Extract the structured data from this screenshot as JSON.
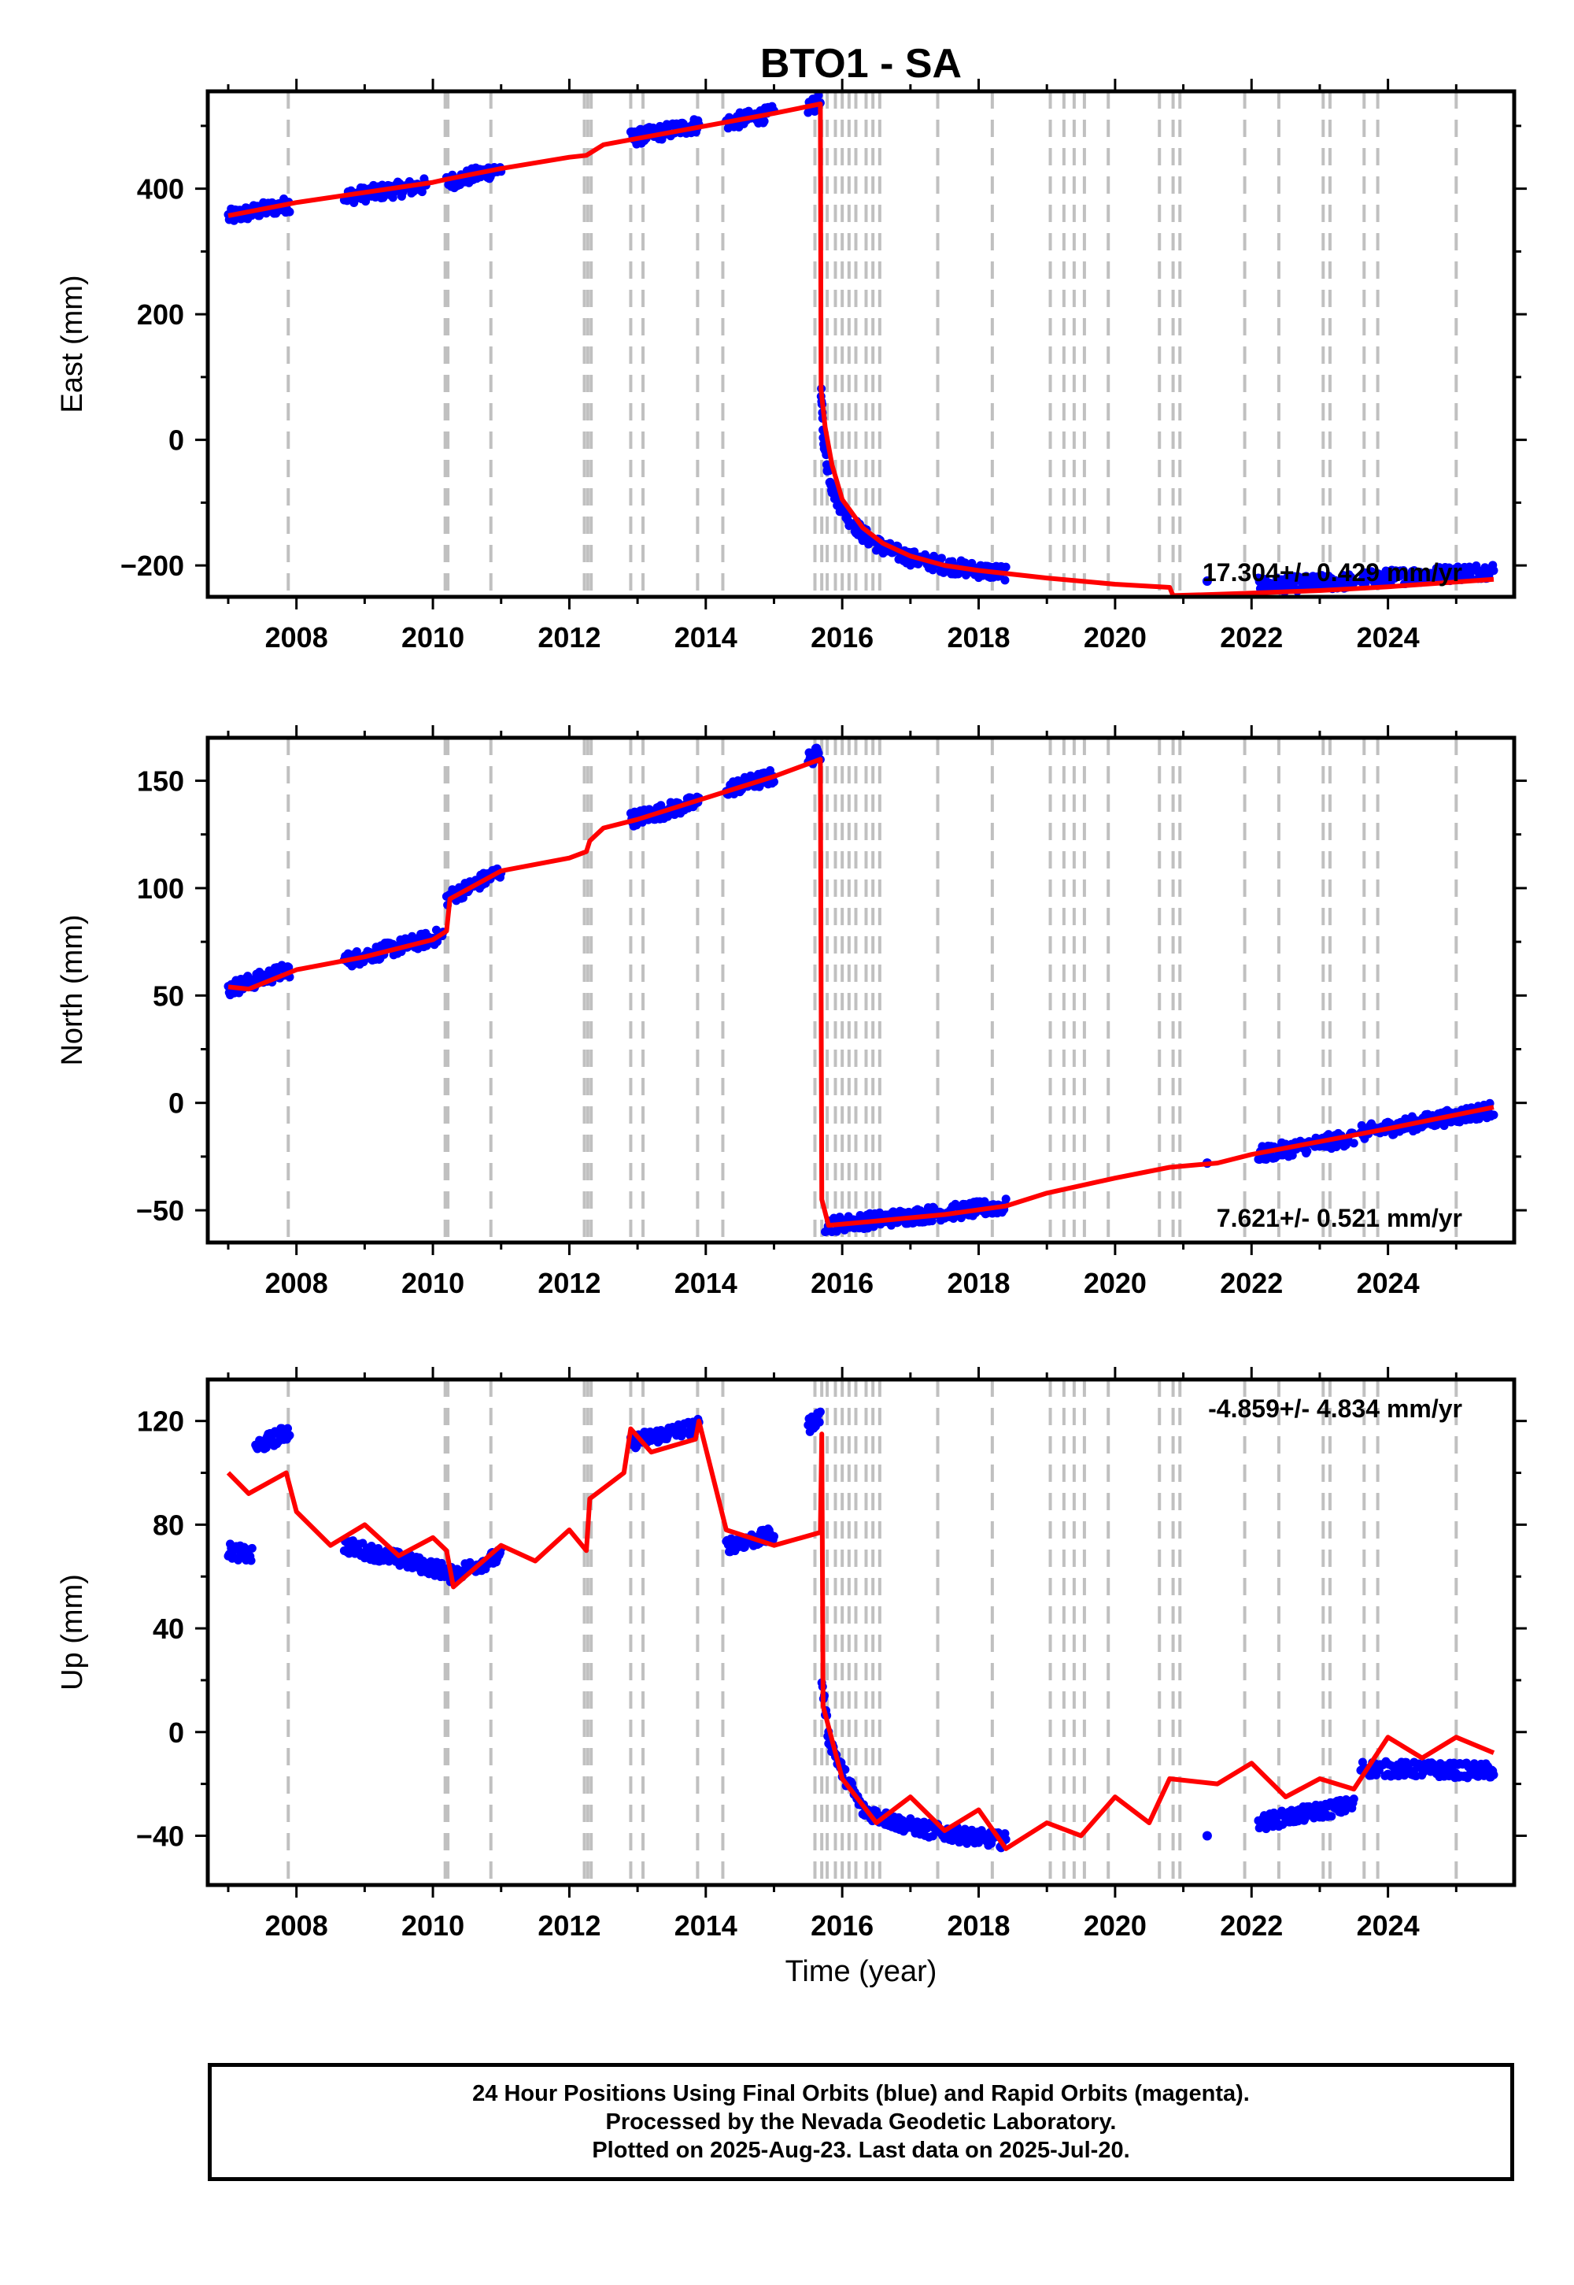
{
  "title": "BTO1 - SA",
  "footer": {
    "line1": "24 Hour Positions Using Final Orbits (blue) and Rapid Orbits (magenta).",
    "line2": "Processed by the Nevada Geodetic Laboratory.",
    "line3": "Plotted on 2025-Aug-23. Last data on 2025-Jul-20."
  },
  "colors": {
    "data": "#0000ff",
    "model": "#ff0000",
    "discontinuity": "#c0c0c0",
    "axes": "#000000"
  },
  "chart_data": [
    {
      "type": "scatter",
      "ylabel": "East (mm)",
      "xlabel": "",
      "xlim": [
        2006.7,
        2025.85
      ],
      "ylim": [
        -250,
        555
      ],
      "xticks": [
        2008,
        2010,
        2012,
        2014,
        2016,
        2018,
        2020,
        2022,
        2024
      ],
      "yticks": [
        -200,
        0,
        200,
        400
      ],
      "ytick_labels": [
        "−200",
        "0",
        "200",
        "400"
      ],
      "rate_label": "17.304+/- 0.429 mm/yr",
      "rate_position": "bottom-right",
      "discontinuities": [
        2007.88,
        2010.18,
        2010.22,
        2010.85,
        2012.22,
        2012.27,
        2012.32,
        2012.9,
        2013.08,
        2013.88,
        2014.25,
        2015.6,
        2015.7,
        2015.78,
        2015.9,
        2016.0,
        2016.1,
        2016.2,
        2016.35,
        2016.45,
        2016.55,
        2017.4,
        2018.2,
        2019.05,
        2019.25,
        2019.4,
        2019.55,
        2019.9,
        2020.65,
        2020.85,
        2020.95,
        2021.9,
        2022.4,
        2023.05,
        2023.15,
        2023.65,
        2023.85,
        2025.0
      ],
      "data_series": [
        {
          "x": [
            2007.0,
            2007.9
          ],
          "y": [
            355,
            375
          ]
        },
        {
          "x": [
            2008.7,
            2009.9
          ],
          "y": [
            387,
            405
          ]
        },
        {
          "x": [
            2010.2,
            2011.0
          ],
          "y": [
            410,
            432
          ]
        },
        {
          "x": [
            2012.9,
            2013.9
          ],
          "y": [
            480,
            502
          ]
        },
        {
          "x": [
            2014.3,
            2015.0
          ],
          "y": [
            505,
            520
          ]
        },
        {
          "x": [
            2015.5,
            2015.68
          ],
          "y": [
            530,
            538
          ]
        },
        {
          "x": [
            2015.69,
            2015.72,
            2015.78,
            2015.85,
            2015.95,
            2016.1,
            2016.3,
            2016.6,
            2017.0,
            2017.5,
            2018.0,
            2018.4
          ],
          "y": [
            80,
            10,
            -40,
            -75,
            -100,
            -125,
            -150,
            -172,
            -188,
            -200,
            -208,
            -212
          ]
        },
        {
          "x": [
            2021.35
          ],
          "y": [
            -225
          ]
        },
        {
          "x": [
            2022.1,
            2023.5
          ],
          "y": [
            -232,
            -225
          ]
        },
        {
          "x": [
            2023.6,
            2025.55
          ],
          "y": [
            -222,
            -208
          ]
        }
      ],
      "model": {
        "x": [
          2007.0,
          2008.0,
          2010.0,
          2010.2,
          2011.0,
          2012.0,
          2012.25,
          2012.5,
          2013.0,
          2014.0,
          2015.0,
          2015.68,
          2015.69,
          2015.75,
          2015.85,
          2016.0,
          2016.3,
          2016.6,
          2017.0,
          2017.5,
          2018.0,
          2019.0,
          2020.0,
          2020.8,
          2020.85,
          2021.5,
          2022.0,
          2023.0,
          2024.0,
          2025.55
        ],
        "y": [
          357,
          378,
          410,
          415,
          432,
          450,
          453,
          470,
          480,
          500,
          520,
          535,
          80,
          20,
          -40,
          -95,
          -140,
          -165,
          -185,
          -200,
          -208,
          -220,
          -230,
          -235,
          -248,
          -246,
          -244,
          -240,
          -234,
          -222
        ]
      }
    },
    {
      "type": "scatter",
      "ylabel": "North (mm)",
      "xlabel": "",
      "xlim": [
        2006.7,
        2025.85
      ],
      "ylim": [
        -65,
        170
      ],
      "xticks": [
        2008,
        2010,
        2012,
        2014,
        2016,
        2018,
        2020,
        2022,
        2024
      ],
      "yticks": [
        -50,
        0,
        50,
        100,
        150
      ],
      "ytick_labels": [
        "−50",
        "0",
        "50",
        "100",
        "150"
      ],
      "rate_label": "7.621+/- 0.521 mm/yr",
      "rate_position": "bottom-right",
      "discontinuities": [
        2007.88,
        2010.18,
        2010.22,
        2010.85,
        2012.22,
        2012.27,
        2012.32,
        2012.9,
        2013.08,
        2013.88,
        2014.25,
        2015.6,
        2015.7,
        2015.78,
        2015.9,
        2016.0,
        2016.1,
        2016.2,
        2016.35,
        2016.45,
        2016.55,
        2017.4,
        2018.2,
        2019.05,
        2019.25,
        2019.4,
        2019.55,
        2019.9,
        2020.65,
        2020.85,
        2020.95,
        2021.9,
        2022.4,
        2023.05,
        2023.15,
        2023.65,
        2023.85,
        2025.0
      ],
      "data_series": [
        {
          "x": [
            2007.0,
            2007.9
          ],
          "y": [
            53,
            62
          ]
        },
        {
          "x": [
            2008.7,
            2010.15
          ],
          "y": [
            66,
            78
          ]
        },
        {
          "x": [
            2010.2,
            2011.0
          ],
          "y": [
            95,
            108
          ]
        },
        {
          "x": [
            2012.9,
            2013.9
          ],
          "y": [
            132,
            140
          ]
        },
        {
          "x": [
            2014.3,
            2015.0
          ],
          "y": [
            146,
            152
          ]
        },
        {
          "x": [
            2015.5,
            2015.68
          ],
          "y": [
            160,
            163
          ]
        },
        {
          "x": [
            2015.75,
            2018.4
          ],
          "y": [
            -57,
            -48
          ]
        },
        {
          "x": [
            2021.35
          ],
          "y": [
            -28
          ]
        },
        {
          "x": [
            2022.1,
            2023.5
          ],
          "y": [
            -24,
            -16
          ]
        },
        {
          "x": [
            2023.6,
            2025.55
          ],
          "y": [
            -14,
            -3
          ]
        }
      ],
      "model": {
        "x": [
          2007.0,
          2007.3,
          2008.0,
          2009.0,
          2010.0,
          2010.2,
          2010.25,
          2011.0,
          2012.0,
          2012.25,
          2012.3,
          2012.5,
          2013.0,
          2014.0,
          2015.0,
          2015.68,
          2015.7,
          2015.8,
          2016.5,
          2017.5,
          2018.4,
          2019.0,
          2020.0,
          2020.8,
          2021.5,
          2022.0,
          2023.0,
          2024.0,
          2025.55
        ],
        "y": [
          54,
          53,
          62,
          68,
          76,
          80,
          95,
          108,
          114,
          117,
          122,
          128,
          132,
          142,
          152,
          160,
          -45,
          -57,
          -55,
          -52,
          -48,
          -42,
          -35,
          -30,
          -28,
          -24,
          -18,
          -12,
          -2
        ]
      }
    },
    {
      "type": "scatter",
      "ylabel": "Up (mm)",
      "xlabel": "Time (year)",
      "xlim": [
        2006.7,
        2025.85
      ],
      "ylim": [
        -59,
        136
      ],
      "xticks": [
        2008,
        2010,
        2012,
        2014,
        2016,
        2018,
        2020,
        2022,
        2024
      ],
      "yticks": [
        -40,
        0,
        40,
        80,
        120
      ],
      "ytick_labels": [
        "−40",
        "0",
        "40",
        "80",
        "120"
      ],
      "rate_label": "-4.859+/- 4.834 mm/yr",
      "rate_position": "top-right",
      "discontinuities": [
        2007.88,
        2010.18,
        2010.22,
        2010.85,
        2012.22,
        2012.27,
        2012.32,
        2012.9,
        2013.08,
        2013.88,
        2014.25,
        2015.6,
        2015.7,
        2015.78,
        2015.9,
        2016.0,
        2016.1,
        2016.2,
        2016.35,
        2016.45,
        2016.55,
        2017.4,
        2018.2,
        2019.05,
        2019.25,
        2019.4,
        2019.55,
        2019.9,
        2020.65,
        2020.85,
        2020.95,
        2021.9,
        2022.4,
        2023.05,
        2023.15,
        2023.65,
        2023.85,
        2025.0
      ],
      "data_series": [
        {
          "x": [
            2007.0,
            2007.35
          ],
          "y": [
            70,
            68
          ]
        },
        {
          "x": [
            2007.4,
            2007.9
          ],
          "y": [
            110,
            116
          ]
        },
        {
          "x": [
            2008.7,
            2010.2
          ],
          "y": [
            72,
            62
          ]
        },
        {
          "x": [
            2010.2,
            2011.0
          ],
          "y": [
            60,
            68
          ]
        },
        {
          "x": [
            2012.9,
            2013.9
          ],
          "y": [
            112,
            118
          ]
        },
        {
          "x": [
            2014.3,
            2015.0
          ],
          "y": [
            72,
            76
          ]
        },
        {
          "x": [
            2015.5,
            2015.68
          ],
          "y": [
            118,
            122
          ]
        },
        {
          "x": [
            2015.7,
            2015.8,
            2016.0,
            2016.3,
            2016.8,
            2017.3,
            2017.8,
            2018.4
          ],
          "y": [
            20,
            -2,
            -15,
            -30,
            -35,
            -38,
            -40,
            -42
          ]
        },
        {
          "x": [
            2021.35
          ],
          "y": [
            -40
          ]
        },
        {
          "x": [
            2022.1,
            2023.5
          ],
          "y": [
            -35,
            -28
          ]
        },
        {
          "x": [
            2023.6,
            2025.55
          ],
          "y": [
            -14,
            -15
          ]
        }
      ],
      "model": {
        "x": [
          2007.0,
          2007.3,
          2007.85,
          2008.0,
          2008.5,
          2009.0,
          2009.5,
          2010.0,
          2010.2,
          2010.3,
          2011.0,
          2011.5,
          2012.0,
          2012.25,
          2012.3,
          2012.8,
          2012.9,
          2013.2,
          2013.85,
          2013.9,
          2014.3,
          2015.0,
          2015.68,
          2015.7,
          2015.72,
          2016.0,
          2016.5,
          2017.0,
          2017.5,
          2018.0,
          2018.4,
          2019.0,
          2019.5,
          2020.0,
          2020.5,
          2020.8,
          2021.5,
          2022.0,
          2022.5,
          2023.0,
          2023.5,
          2023.65,
          2024.0,
          2024.5,
          2025.0,
          2025.55
        ],
        "y": [
          100,
          92,
          100,
          85,
          72,
          80,
          68,
          75,
          70,
          56,
          72,
          66,
          78,
          70,
          90,
          100,
          117,
          108,
          113,
          120,
          78,
          72,
          77,
          115,
          10,
          -18,
          -35,
          -25,
          -38,
          -30,
          -45,
          -35,
          -40,
          -25,
          -35,
          -18,
          -20,
          -12,
          -25,
          -18,
          -22,
          -16,
          -2,
          -10,
          -2,
          -8
        ]
      }
    }
  ]
}
